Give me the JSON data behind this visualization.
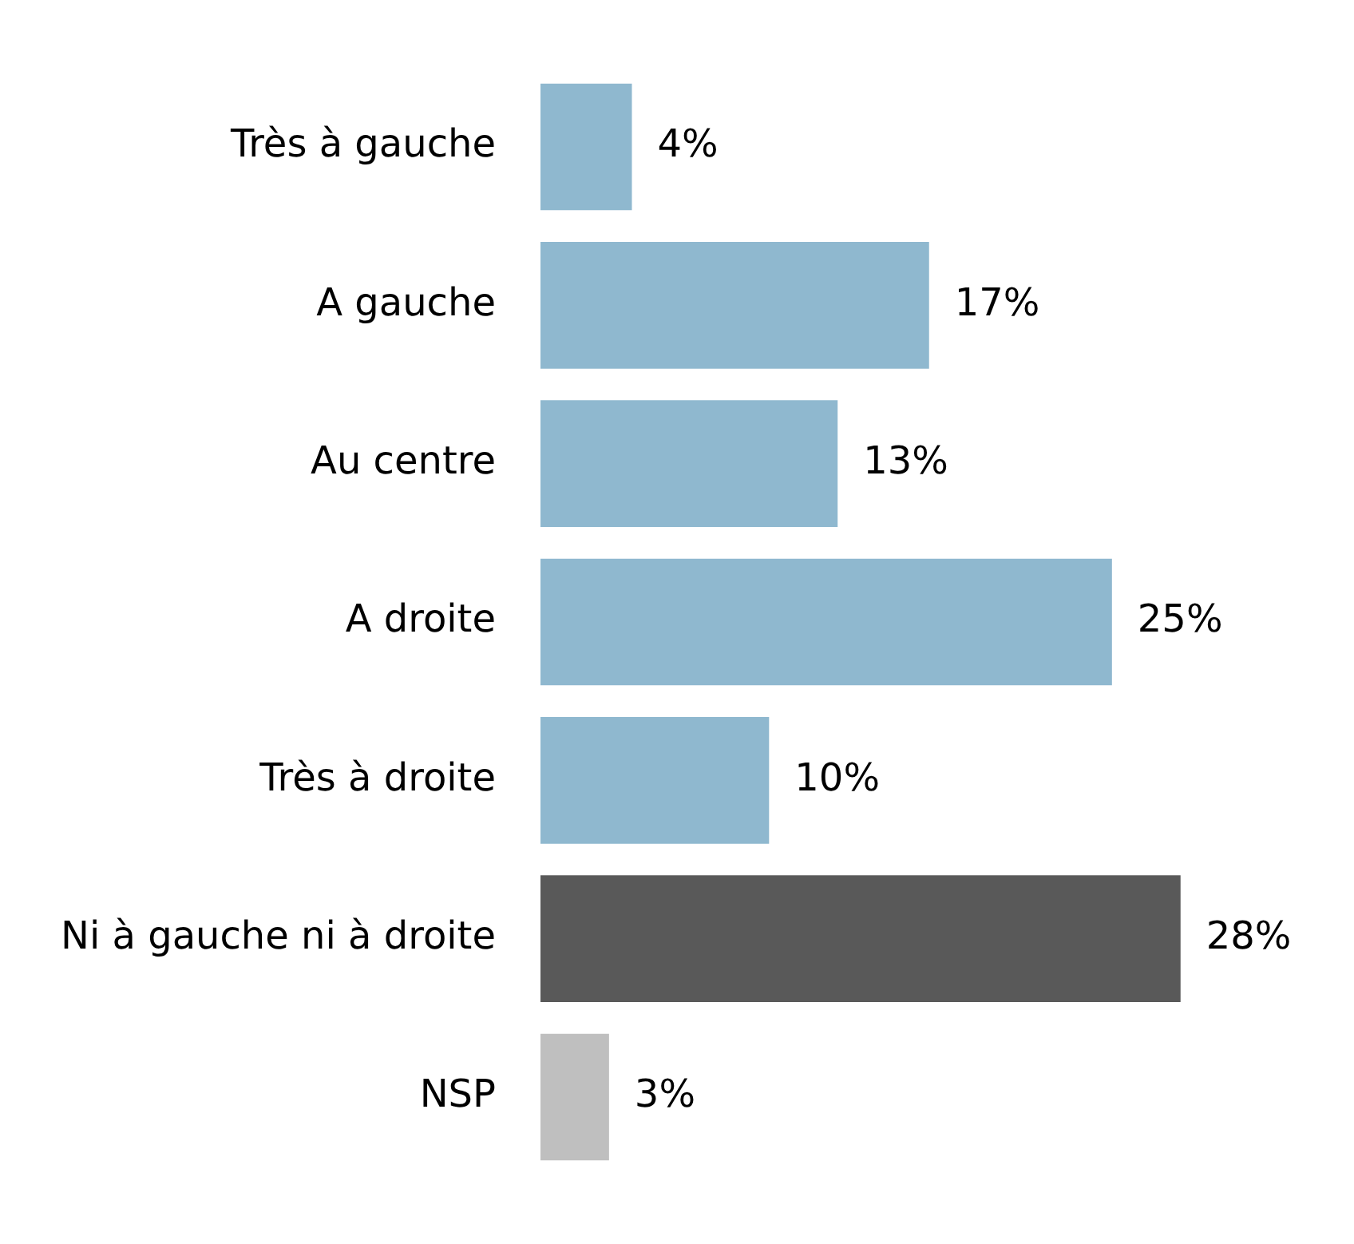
{
  "chart_data": {
    "type": "bar",
    "orientation": "horizontal",
    "categories": [
      "Très à gauche",
      "A gauche",
      "Au centre",
      "A droite",
      "Très à droite",
      "Ni à gauche ni à droite",
      "NSP"
    ],
    "values": [
      4,
      17,
      13,
      25,
      10,
      28,
      3
    ],
    "colors": [
      "#8fb8cf",
      "#8fb8cf",
      "#8fb8cf",
      "#8fb8cf",
      "#8fb8cf",
      "#595959",
      "#bfbfbf"
    ],
    "value_labels": [
      "4%",
      "17%",
      "13%",
      "25%",
      "10%",
      "28%",
      "3%"
    ],
    "tick_labels": "y"
  }
}
